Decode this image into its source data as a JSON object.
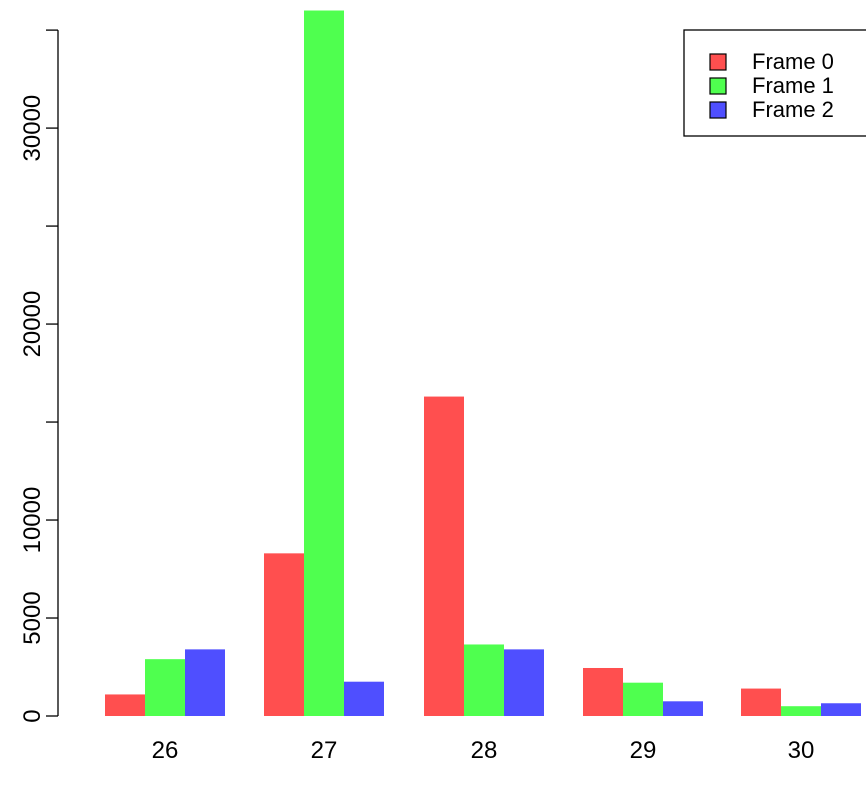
{
  "chart_data": {
    "type": "bar",
    "title": "",
    "xlabel": "",
    "ylabel": "",
    "categories": [
      "26",
      "27",
      "28",
      "29",
      "30"
    ],
    "series": [
      {
        "name": "Frame 0",
        "color": "#FF4F4F",
        "values": [
          1100,
          8300,
          16300,
          2450,
          1400
        ]
      },
      {
        "name": "Frame 1",
        "color": "#4FFF4F",
        "values": [
          2900,
          36000,
          3650,
          1700,
          500
        ]
      },
      {
        "name": "Frame 2",
        "color": "#4F4FFF",
        "values": [
          3400,
          1750,
          3400,
          750,
          650
        ]
      }
    ],
    "y_ticks": [
      0,
      5000,
      10000,
      20000,
      30000
    ],
    "y_tick_labels": [
      "0",
      "5000",
      "10000",
      "20000",
      "30000"
    ],
    "y_minor_ticks": [
      15000,
      25000,
      35000
    ],
    "ylim": [
      0,
      36000
    ],
    "legend_position": "top-right",
    "grid": false
  }
}
